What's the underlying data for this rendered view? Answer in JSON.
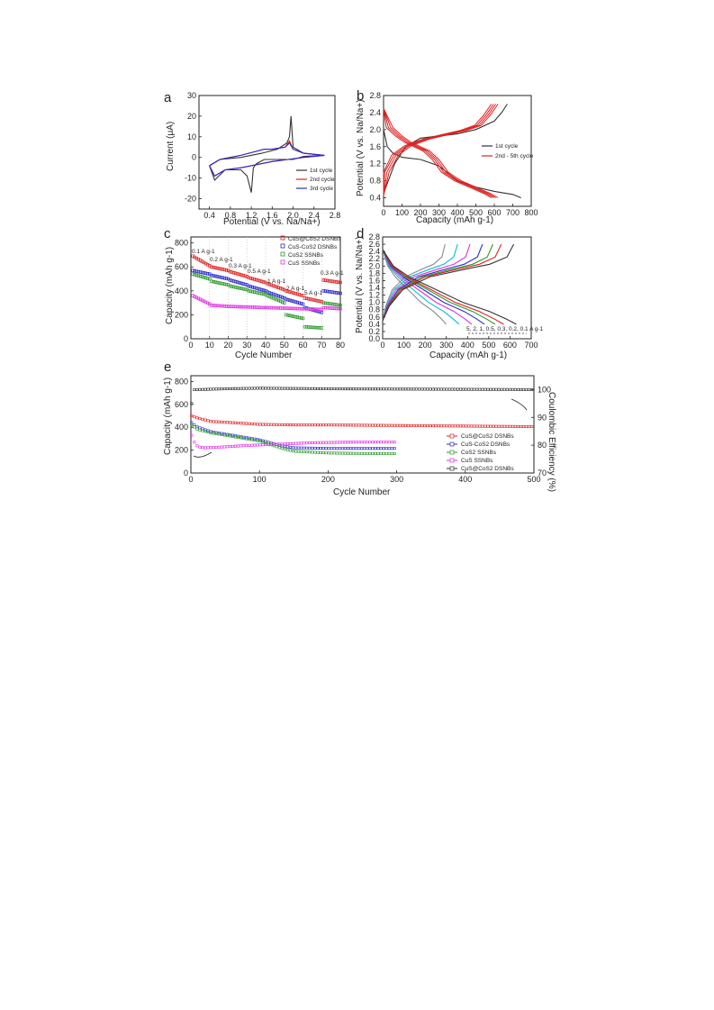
{
  "chart_data": [
    {
      "panel": "a",
      "type": "line",
      "xlabel": "Potential (V vs. Na/Na+)",
      "ylabel": "Current (μA)",
      "xlim": [
        0.2,
        2.8
      ],
      "ylim": [
        -25,
        30
      ],
      "xticks": [
        "0.4",
        "0.8",
        "1.2",
        "1.6",
        "2.0",
        "2.4",
        "2.8"
      ],
      "yticks": [
        "30",
        "20",
        "10",
        "0",
        "-10",
        "-20"
      ],
      "legend": [
        "1st cycle",
        "2nd cycle",
        "3rd cycle"
      ],
      "series": [
        {
          "name": "1st cycle",
          "color": "#333333",
          "x": [
            0.4,
            0.5,
            0.7,
            1.0,
            1.12,
            1.2,
            1.24,
            1.3,
            1.45,
            1.7,
            2.0,
            2.2,
            2.6,
            2.6,
            2.2,
            2.0,
            1.96,
            1.93,
            1.88,
            1.7,
            1.4,
            1.0,
            0.6,
            0.4
          ],
          "y": [
            -4,
            -11,
            -6,
            -6,
            -9,
            -17,
            -5,
            -3,
            -1,
            -1,
            -1,
            0.5,
            1,
            1,
            2,
            5,
            20,
            10,
            7,
            4,
            2,
            0,
            -1,
            -4
          ]
        },
        {
          "name": "2nd cycle",
          "color": "#e02020",
          "x": [
            0.4,
            0.5,
            0.7,
            1.0,
            1.2,
            1.4,
            1.6,
            1.9,
            2.2,
            2.6,
            2.6,
            2.2,
            2.0,
            1.93,
            1.85,
            1.6,
            1.45,
            1.3,
            1.0,
            0.6,
            0.4
          ],
          "y": [
            -4,
            -9,
            -6,
            -5,
            -4,
            -3,
            -2,
            -1,
            0,
            1,
            1,
            2,
            4,
            8,
            5,
            4,
            4,
            3,
            1,
            -1,
            -4
          ]
        },
        {
          "name": "3rd cycle",
          "color": "#2a2acc",
          "x": [
            0.4,
            0.5,
            0.7,
            1.0,
            1.2,
            1.4,
            1.6,
            1.9,
            2.2,
            2.6,
            2.6,
            2.2,
            2.0,
            1.93,
            1.85,
            1.6,
            1.45,
            1.3,
            1.0,
            0.6,
            0.4
          ],
          "y": [
            -4,
            -9,
            -6,
            -5,
            -4,
            -3,
            -2,
            -1,
            0,
            1,
            1,
            2,
            4,
            7,
            5,
            4,
            4,
            3,
            1,
            -1,
            -4
          ]
        }
      ]
    },
    {
      "panel": "b",
      "type": "line",
      "xlabel": "Capacity (mAh g-1)",
      "ylabel": "Potential (V vs. Na/Na+)",
      "xlim": [
        0,
        800
      ],
      "ylim": [
        0.2,
        2.8
      ],
      "xticks": [
        "0",
        "100",
        "200",
        "300",
        "400",
        "500",
        "600",
        "700",
        "800"
      ],
      "yticks": [
        "0.4",
        "0.8",
        "1.2",
        "1.6",
        "2.0",
        "2.4",
        "2.8"
      ],
      "legend": [
        "1st cycle",
        "2nd - 5th cycle"
      ],
      "series": [
        {
          "name": "1st cycle discharge",
          "color": "#333333",
          "x": [
            0,
            20,
            50,
            100,
            200,
            300,
            400,
            500,
            600,
            700,
            745
          ],
          "y": [
            2.0,
            1.6,
            1.45,
            1.35,
            1.3,
            1.15,
            0.8,
            0.65,
            0.55,
            0.48,
            0.4
          ]
        },
        {
          "name": "1st cycle charge",
          "color": "#333333",
          "x": [
            0,
            60,
            120,
            200,
            400,
            500,
            600,
            640,
            670
          ],
          "y": [
            0.5,
            1.2,
            1.6,
            1.8,
            1.9,
            2.0,
            2.2,
            2.4,
            2.6
          ]
        },
        {
          "name": "2nd-5th discharge",
          "color": "#e02020",
          "x": [
            0,
            50,
            100,
            150,
            200,
            250,
            300,
            350,
            420,
            500,
            580,
            620
          ],
          "y": [
            2.5,
            2.05,
            1.85,
            1.7,
            1.6,
            1.5,
            1.3,
            1.0,
            0.8,
            0.65,
            0.5,
            0.4
          ]
        },
        {
          "name": "2nd-5th charge",
          "color": "#e02020",
          "x": [
            0,
            30,
            80,
            150,
            250,
            350,
            450,
            530,
            580,
            620
          ],
          "y": [
            0.45,
            1.0,
            1.4,
            1.62,
            1.78,
            1.88,
            1.98,
            2.1,
            2.35,
            2.6
          ]
        }
      ]
    },
    {
      "panel": "c",
      "type": "scatter",
      "xlabel": "Cycle Number",
      "ylabel": "Capacity (mAh g-1)",
      "xlim": [
        0,
        80
      ],
      "ylim": [
        0,
        850
      ],
      "xticks": [
        "0",
        "10",
        "20",
        "30",
        "40",
        "50",
        "60",
        "70",
        "80"
      ],
      "yticks": [
        "0",
        "200",
        "400",
        "600",
        "800"
      ],
      "rates": [
        "0.1 A g-1",
        "0.2 A g-1",
        "0.3 A g-1",
        "0.5 A g-1",
        "1 A g-1",
        "2 A g-1",
        "5 A g-1",
        "0.3 A g-1"
      ],
      "series": [
        {
          "name": "CuS@CoS2 DSNBs",
          "color": "#e02020",
          "segments": [
            [
              690,
              610
            ],
            [
              600,
              570
            ],
            [
              560,
              520
            ],
            [
              510,
              470
            ],
            [
              460,
              410
            ],
            [
              400,
              360
            ],
            [
              340,
              310
            ],
            [
              490,
              470
            ]
          ]
        },
        {
          "name": "CuS-CoS2 DSNBs",
          "color": "#2a2acc",
          "segments": [
            [
              570,
              540
            ],
            [
              530,
              500
            ],
            [
              490,
              450
            ],
            [
              440,
              400
            ],
            [
              390,
              340
            ],
            [
              330,
              290
            ],
            [
              260,
              220
            ],
            [
              400,
              380
            ]
          ]
        },
        {
          "name": "CoS2 SSNBs",
          "color": "#2a9a2a",
          "segments": [
            [
              540,
              500
            ],
            [
              480,
              450
            ],
            [
              440,
              410
            ],
            [
              400,
              370
            ],
            [
              360,
              300
            ],
            [
              200,
              170
            ],
            [
              100,
              90
            ],
            [
              300,
              280
            ]
          ]
        },
        {
          "name": "CuS SSNBs",
          "color": "#e030e0",
          "segments": [
            [
              360,
              290
            ],
            [
              280,
              270
            ],
            [
              270,
              265
            ],
            [
              265,
              260
            ],
            [
              260,
              255
            ],
            [
              255,
              250
            ],
            [
              250,
              245
            ],
            [
              260,
              250
            ]
          ]
        }
      ]
    },
    {
      "panel": "d",
      "type": "line",
      "xlabel": "Capacity (mAh g-1)",
      "ylabel": "Potential (V vs. Na/Na+)",
      "xlim": [
        0,
        700
      ],
      "ylim": [
        0,
        2.8
      ],
      "xticks": [
        "0",
        "100",
        "200",
        "300",
        "400",
        "500",
        "600",
        "700"
      ],
      "yticks": [
        "0.0",
        "0.2",
        "0.4",
        "0.6",
        "0.8",
        "1.0",
        "1.2",
        "1.4",
        "1.6",
        "1.8",
        "2.0",
        "2.2",
        "2.4",
        "2.6",
        "2.8"
      ],
      "annotation": "5, 2, 1, 0.5, 0.3, 0.2, 0.1 A g-1",
      "series": [
        {
          "name": "5 A g-1",
          "color": "#888888",
          "cap": 300
        },
        {
          "name": "2 A g-1",
          "color": "#00bcd4",
          "cap": 360
        },
        {
          "name": "1 A g-1",
          "color": "#e030e0",
          "cap": 420
        },
        {
          "name": "0.5 A g-1",
          "color": "#2a2acc",
          "cap": 480
        },
        {
          "name": "0.3 A g-1",
          "color": "#2a9a2a",
          "cap": 530
        },
        {
          "name": "0.2 A g-1",
          "color": "#e02020",
          "cap": 570
        },
        {
          "name": "0.1 A g-1",
          "color": "#333333",
          "cap": 630
        }
      ]
    },
    {
      "panel": "e",
      "type": "scatter",
      "xlabel": "Cycle Number",
      "ylabel": "Capacity (mAh g-1)",
      "y2label": "Coulombic Efficiency (%)",
      "xlim": [
        0,
        500
      ],
      "ylim": [
        0,
        850
      ],
      "y2lim": [
        70,
        105
      ],
      "xticks": [
        "0",
        "100",
        "200",
        "300",
        "400",
        "500"
      ],
      "yticks": [
        "0",
        "200",
        "400",
        "600",
        "800"
      ],
      "y2ticks": [
        "70",
        "80",
        "90",
        "100"
      ],
      "series": [
        {
          "name": "CuS@CoS2 DSNBs",
          "color": "#e02020",
          "x": [
            1,
            10,
            30,
            60,
            100,
            150,
            200,
            300,
            400,
            500
          ],
          "y": [
            500,
            480,
            450,
            440,
            425,
            420,
            420,
            415,
            410,
            405
          ]
        },
        {
          "name": "CuS-CoS2 DSNBs",
          "color": "#2a2acc",
          "x": [
            1,
            10,
            30,
            60,
            100,
            130,
            150,
            200,
            250,
            300
          ],
          "y": [
            440,
            400,
            360,
            330,
            290,
            240,
            220,
            215,
            215,
            215
          ]
        },
        {
          "name": "CoS2 SSNBs",
          "color": "#2a9a2a",
          "x": [
            1,
            10,
            30,
            60,
            100,
            130,
            150,
            200,
            250,
            300
          ],
          "y": [
            420,
            380,
            350,
            320,
            280,
            220,
            190,
            175,
            170,
            170
          ]
        },
        {
          "name": "CuS SSNBs",
          "color": "#e030e0",
          "x": [
            1,
            5,
            10,
            20,
            40,
            80,
            120,
            180,
            240,
            300
          ],
          "y": [
            330,
            270,
            230,
            220,
            225,
            240,
            250,
            265,
            270,
            270
          ]
        },
        {
          "name": "CuS@CoS2 DSNBs",
          "color": "#333333",
          "axis": "y2",
          "x": [
            1,
            3,
            5,
            10,
            50,
            100,
            150,
            200,
            300,
            400,
            500
          ],
          "y": [
            95,
            100,
            100,
            100,
            100.3,
            100.5,
            100.4,
            100.3,
            100.2,
            100.1,
            100
          ]
        }
      ]
    }
  ],
  "panels": {
    "a": {
      "label": "a",
      "xlabel": "Potential (V vs. Na/Na+)",
      "ylabel": "Current (μA)",
      "leg1": "1st cycle",
      "leg2": "2nd cycle",
      "leg3": "3rd cycle"
    },
    "b": {
      "label": "b",
      "xlabel": "Capacity (mAh g-1)",
      "ylabel": "Potential (V vs. Na/Na+)",
      "leg1": "1st cycle",
      "leg2": "2nd - 5th cycle"
    },
    "c": {
      "label": "c",
      "xlabel": "Cycle Number",
      "ylabel": "Capacity (mAh g-1)",
      "leg1": "CuS@CoS2 DSNBs",
      "leg2": "CuS-CoS2 DSNBs",
      "leg3": "CoS2 SSNBs",
      "leg4": "CuS SSNBs"
    },
    "d": {
      "label": "d",
      "xlabel": "Capacity (mAh g-1)",
      "ylabel": "Potential (V vs. Na/Na+)",
      "ann": "5, 2, 1, 0.5, 0.3, 0.2, 0.1 A g-1"
    },
    "e": {
      "label": "e",
      "xlabel": "Cycle Number",
      "ylabel": "Capacity (mAh g-1)",
      "y2label": "Coulombic Efficiency (%)",
      "leg1": "CuS@CoS2 DSNBs",
      "leg2": "CuS-CoS2 DSNBs",
      "leg3": "CoS2 SSNBs",
      "leg4": "CuS SSNBs",
      "leg5": "CuS@CoS2 DSNBs"
    }
  }
}
